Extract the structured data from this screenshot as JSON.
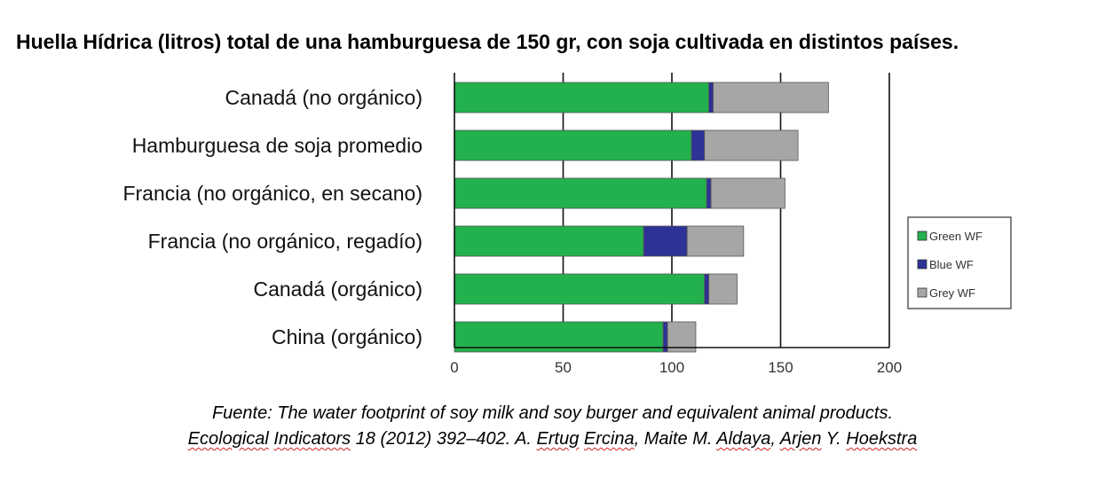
{
  "chart_data": {
    "type": "bar",
    "orientation": "horizontal",
    "stacked": true,
    "title": "Huella Hídrica (litros) total de una hamburguesa de 150 gr, con soja cultivada en distintos países.",
    "categories": [
      "Canadá (no orgánico)",
      "Hamburguesa de soja promedio",
      "Francia (no orgánico, en secano)",
      "Francia (no orgánico, regadío)",
      "Canadá (orgánico)",
      "China (orgánico)"
    ],
    "series": [
      {
        "name": "Green WF",
        "color": "#22b14c",
        "values": [
          117,
          109,
          116,
          87,
          115,
          96
        ]
      },
      {
        "name": "Blue WF",
        "color": "#2e3196",
        "values": [
          2,
          6,
          2,
          20,
          2,
          2
        ]
      },
      {
        "name": "Grey WF",
        "color": "#a6a6a6",
        "values": [
          53,
          43,
          34,
          26,
          13,
          13
        ]
      }
    ],
    "xlim": [
      0,
      200
    ],
    "xticks": [
      "0",
      "50",
      "100",
      "150",
      "200"
    ],
    "grid": true,
    "legend_position": "right"
  },
  "source": {
    "line1": "Fuente: The water footprint of soy milk and soy burger and equivalent animal products.",
    "line2_parts": [
      {
        "text": "Ecological",
        "squiggle": true
      },
      {
        "text": " ",
        "squiggle": false
      },
      {
        "text": "Indicators",
        "squiggle": true
      },
      {
        "text": " 18 (2012) 392–402. A. ",
        "squiggle": false
      },
      {
        "text": "Ertug",
        "squiggle": true
      },
      {
        "text": " ",
        "squiggle": false
      },
      {
        "text": "Ercina",
        "squiggle": true
      },
      {
        "text": ", Maite M. ",
        "squiggle": false
      },
      {
        "text": "Aldaya",
        "squiggle": true
      },
      {
        "text": ", ",
        "squiggle": false
      },
      {
        "text": "Arjen",
        "squiggle": true
      },
      {
        "text": " Y. ",
        "squiggle": false
      },
      {
        "text": "Hoekstra",
        "squiggle": true
      }
    ]
  }
}
